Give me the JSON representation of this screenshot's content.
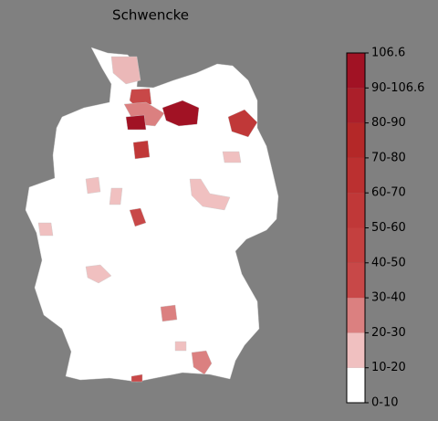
{
  "map": {
    "title": "Schwencke",
    "legend": {
      "labels": [
        "0-10",
        "10-20",
        "20-30",
        "30-40",
        "40-50",
        "50-60",
        "60-70",
        "70-80",
        "80-90",
        "90-106.6",
        "106.6"
      ],
      "colors": [
        "#ffffff",
        "#f0c0c0",
        "#db8080",
        "#c84848",
        "#c4403f",
        "#c03838",
        "#bb3030",
        "#b42828",
        "#ab1f2a",
        "#a11224"
      ]
    }
  }
}
